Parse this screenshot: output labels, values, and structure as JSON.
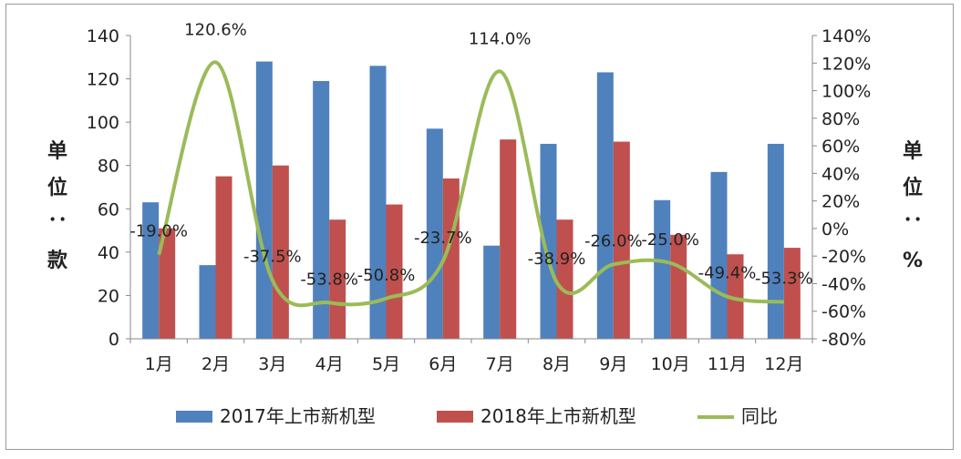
{
  "chart_data": {
    "type": "bar",
    "categories": [
      "1月",
      "2月",
      "3月",
      "4月",
      "5月",
      "6月",
      "7月",
      "8月",
      "9月",
      "10月",
      "11月",
      "12月"
    ],
    "series": [
      {
        "name": "2017年上市新机型",
        "type": "bar",
        "axis": "left",
        "color": "#4F81BD",
        "values": [
          63,
          34,
          128,
          119,
          126,
          97,
          43,
          90,
          123,
          64,
          77,
          90
        ]
      },
      {
        "name": "2018年上市新机型",
        "type": "bar",
        "axis": "left",
        "color": "#C0504D",
        "values": [
          51,
          75,
          80,
          55,
          62,
          74,
          92,
          55,
          91,
          48,
          39,
          42
        ]
      },
      {
        "name": "同比",
        "type": "line",
        "axis": "right",
        "color": "#9BBB59",
        "values": [
          -19.0,
          120.6,
          -37.5,
          -53.8,
          -50.8,
          -23.7,
          114.0,
          -38.9,
          -26.0,
          -25.0,
          -49.4,
          -53.3
        ]
      }
    ],
    "data_labels": [
      "-19.0%",
      "120.6%",
      "-37.5%",
      "-53.8%",
      "-50.8%",
      "-23.7%",
      "114.0%",
      "-38.9%",
      "-26.0%",
      "-25.0%",
      "-49.4%",
      "-53.3%"
    ],
    "ylabel": "单位：款",
    "y2label": "单位：%",
    "ylim": [
      0,
      140
    ],
    "y2lim": [
      -80,
      140
    ],
    "yticks": [
      "0",
      "20",
      "40",
      "60",
      "80",
      "100",
      "120",
      "140"
    ],
    "y2ticks": [
      "-80%",
      "-60%",
      "-40%",
      "-20%",
      "0%",
      "20%",
      "40%",
      "60%",
      "80%",
      "100%",
      "120%",
      "140%"
    ],
    "grid": false,
    "legend": "bottom"
  }
}
